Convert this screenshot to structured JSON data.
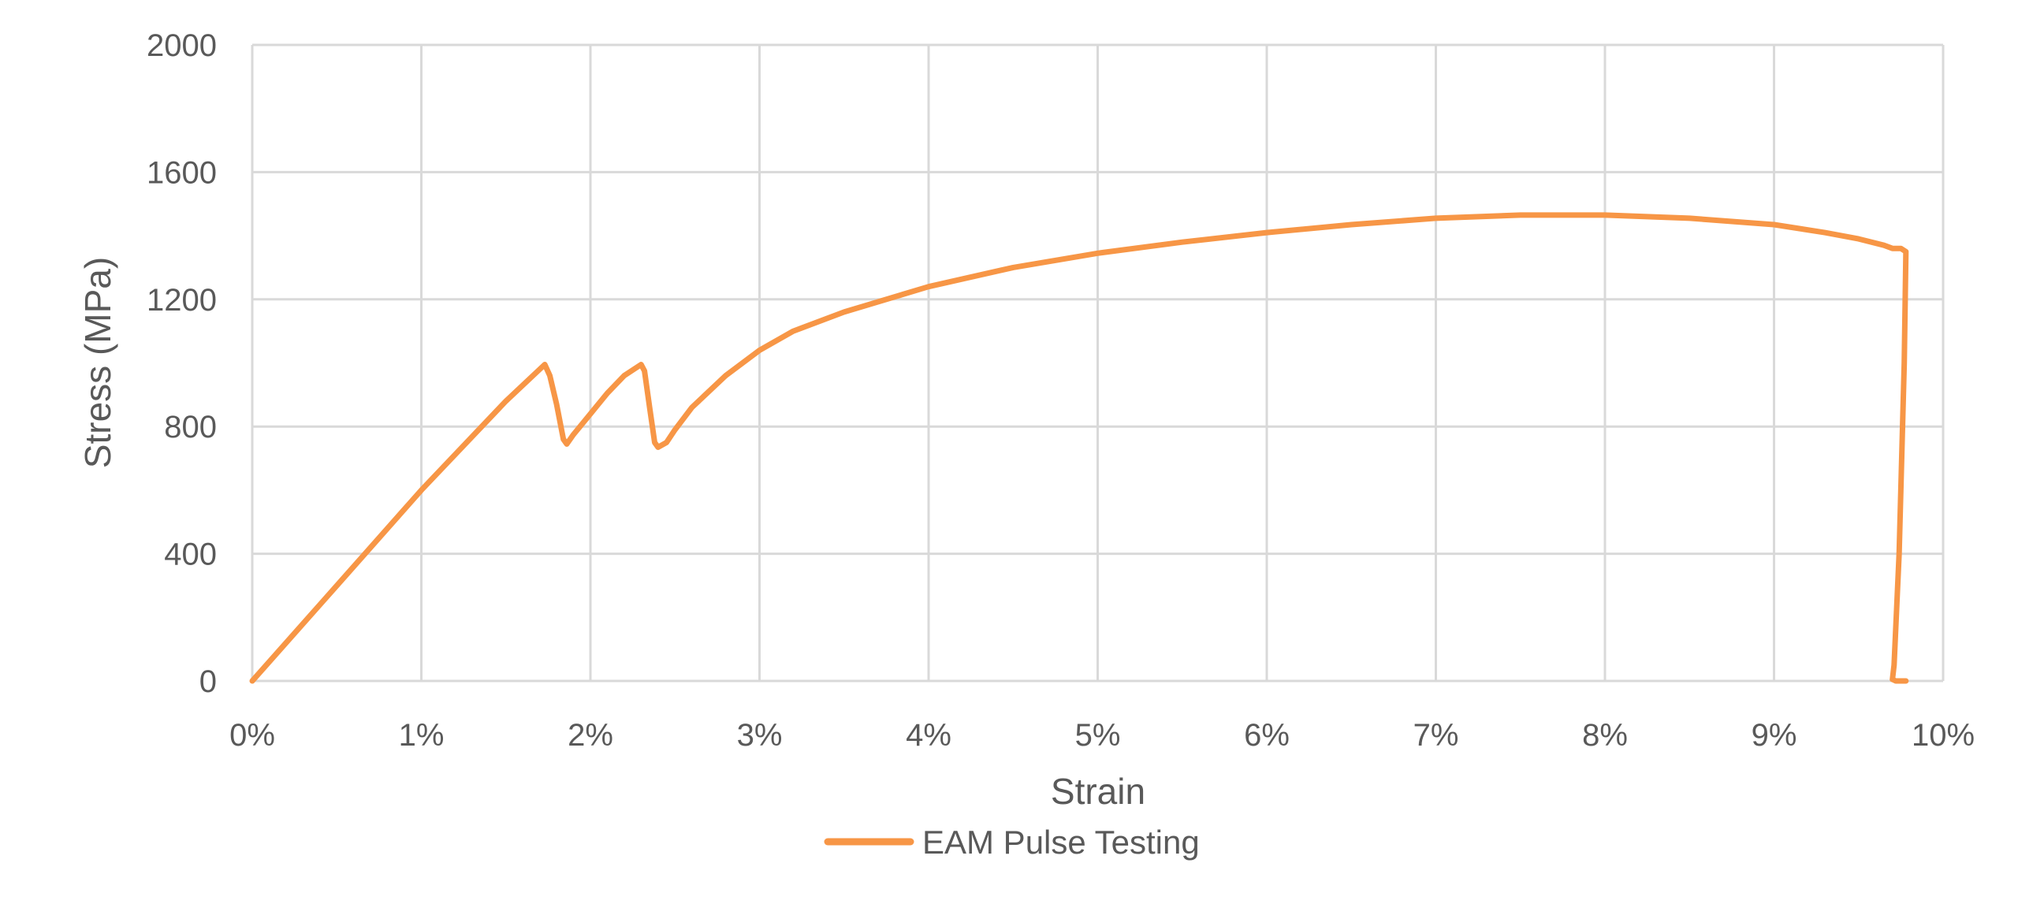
{
  "chart_data": {
    "type": "line",
    "title": "",
    "xlabel": "Strain",
    "ylabel": "Stress (MPa)",
    "xlim": [
      0,
      10
    ],
    "ylim": [
      0,
      2000
    ],
    "x_unit": "%",
    "x_ticks": [
      0,
      1,
      2,
      3,
      4,
      5,
      6,
      7,
      8,
      9,
      10
    ],
    "x_tick_labels": [
      "0%",
      "1%",
      "2%",
      "3%",
      "4%",
      "5%",
      "6%",
      "7%",
      "8%",
      "9%",
      "10%"
    ],
    "y_ticks": [
      0,
      400,
      800,
      1200,
      1600,
      2000
    ],
    "y_tick_labels": [
      "0",
      "400",
      "800",
      "1200",
      "1600",
      "2000"
    ],
    "grid": true,
    "legend_position": "bottom",
    "series": [
      {
        "name": "EAM Pulse Testing",
        "color": "#f79646",
        "x": [
          0,
          0.5,
          1.0,
          1.5,
          1.73,
          1.76,
          1.8,
          1.84,
          1.86,
          1.9,
          2.0,
          2.1,
          2.2,
          2.3,
          2.32,
          2.35,
          2.38,
          2.4,
          2.45,
          2.5,
          2.6,
          2.8,
          3.0,
          3.2,
          3.5,
          4.0,
          4.5,
          5.0,
          5.5,
          6.0,
          6.5,
          7.0,
          7.5,
          8.0,
          8.5,
          9.0,
          9.3,
          9.5,
          9.65,
          9.7,
          9.75,
          9.78,
          9.77,
          9.74,
          9.71,
          9.7,
          9.72,
          9.78
        ],
        "y": [
          0,
          300,
          600,
          880,
          995,
          960,
          870,
          760,
          745,
          775,
          840,
          905,
          960,
          995,
          975,
          860,
          750,
          735,
          750,
          790,
          860,
          960,
          1040,
          1100,
          1160,
          1240,
          1300,
          1345,
          1380,
          1410,
          1435,
          1455,
          1465,
          1465,
          1455,
          1435,
          1410,
          1390,
          1370,
          1360,
          1360,
          1350,
          1000,
          400,
          50,
          5,
          0,
          0
        ]
      }
    ]
  }
}
